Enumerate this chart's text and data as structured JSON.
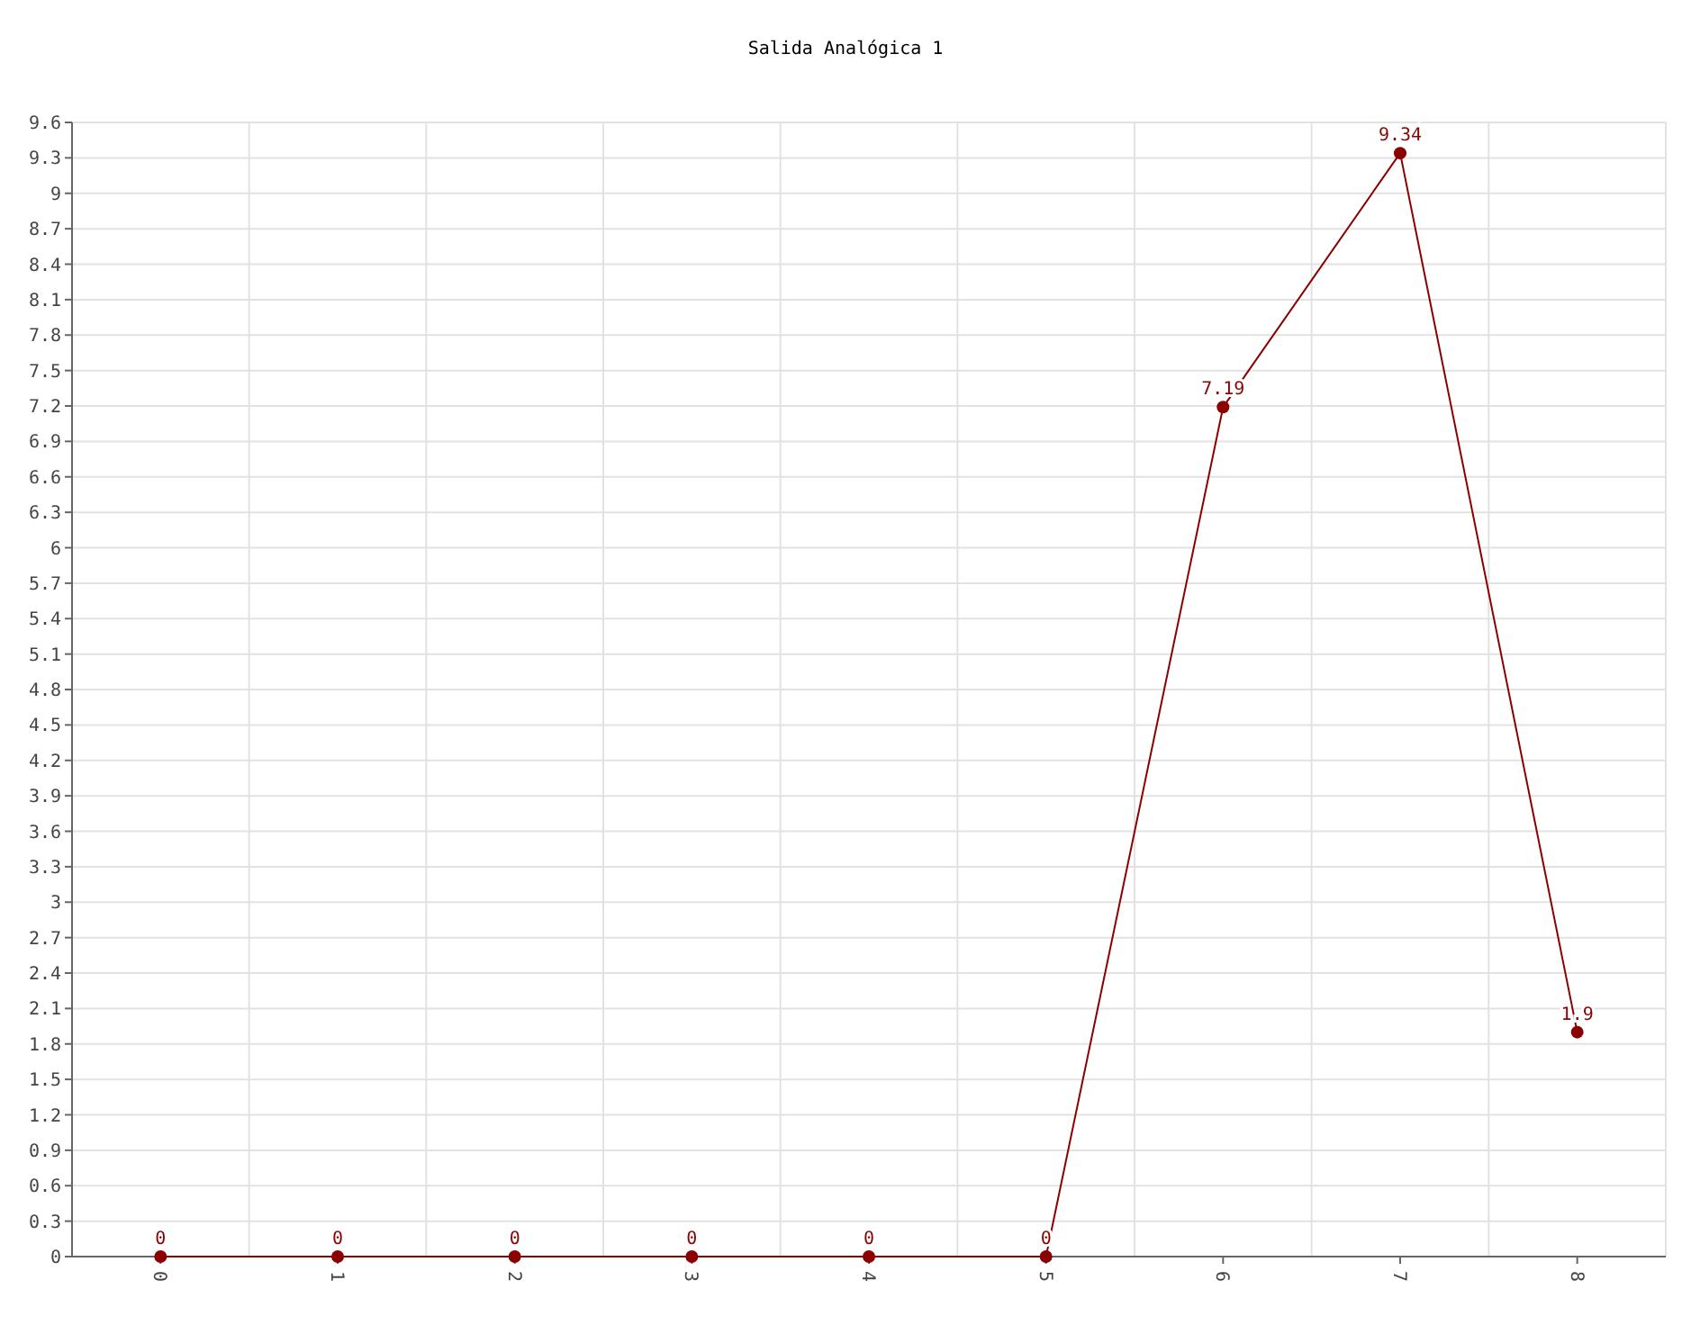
{
  "chart_data": {
    "type": "line",
    "title": "Salida Analógica 1",
    "categories": [
      "0",
      "1",
      "2",
      "3",
      "4",
      "5",
      "6",
      "7",
      "8"
    ],
    "series": [
      {
        "color": "#8b0000",
        "values": [
          0,
          0,
          0,
          0,
          0,
          0,
          7.19,
          9.34,
          1.9
        ]
      }
    ],
    "ylim": [
      0,
      9.6
    ],
    "yticks": [
      0,
      0.3,
      0.6,
      0.9,
      1.2,
      1.5,
      1.8,
      2.1,
      2.4,
      2.7,
      3,
      3.3,
      3.6,
      3.9,
      4.2,
      4.5,
      4.8,
      5.1,
      5.4,
      5.7,
      6,
      6.3,
      6.6,
      6.9,
      7.2,
      7.5,
      7.8,
      8.1,
      8.4,
      8.7,
      9,
      9.3,
      9.6
    ],
    "grid": true,
    "marker": "circle",
    "data_labels": true
  }
}
